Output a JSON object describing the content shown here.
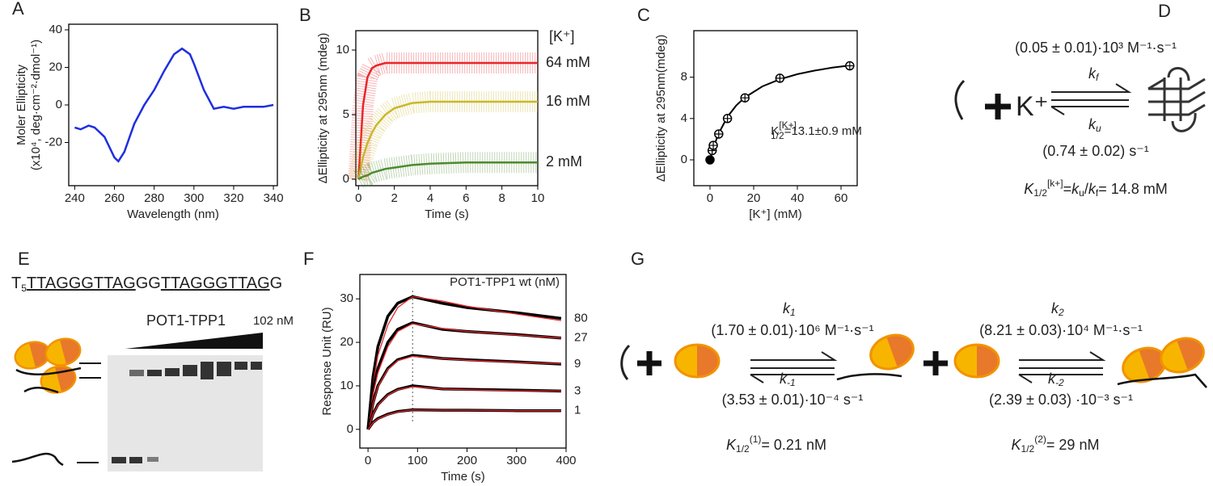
{
  "chart_data": [
    {
      "type": "line",
      "label": "A",
      "xlabel": "Wavelength (nm)",
      "ylabel": [
        "Moler Ellipticity",
        "(x10⁴, deg·cm⁻²·dmol⁻¹)"
      ],
      "x": [
        240,
        243,
        247,
        250,
        255,
        260,
        262,
        265,
        270,
        275,
        280,
        285,
        290,
        294,
        298,
        300,
        305,
        310,
        315,
        320,
        325,
        330,
        335,
        340
      ],
      "values": [
        -12,
        -13,
        -11,
        -12,
        -17,
        -28,
        -30,
        -25,
        -10,
        0,
        8,
        18,
        27,
        30,
        27,
        22,
        8,
        -2,
        -1,
        -2,
        -1,
        -1,
        -1,
        0
      ],
      "color": "#1f2ee0",
      "xlim": [
        237,
        342
      ],
      "ylim": [
        -43,
        43
      ],
      "xticks": [
        240,
        260,
        280,
        300,
        320,
        340
      ],
      "yticks": [
        -20,
        0,
        20,
        40
      ]
    },
    {
      "type": "line",
      "label": "B",
      "xlabel": "Time (s)",
      "ylabel": [
        "ΔEllipticity at 295nm (mdeg)"
      ],
      "legend_title": "[K⁺]",
      "noise": true,
      "x": [
        0,
        0.25,
        0.5,
        0.75,
        1,
        1.5,
        2,
        3,
        4,
        6,
        8,
        10
      ],
      "series": [
        {
          "name": "64 mM",
          "color": "#e8262b",
          "values": [
            0,
            5.7,
            7.9,
            8.6,
            8.8,
            9,
            9,
            9,
            9,
            9,
            9,
            9
          ]
        },
        {
          "name": "16 mM",
          "color": "#c9b829",
          "values": [
            0,
            1.7,
            2.8,
            3.6,
            4.2,
            5.0,
            5.5,
            5.9,
            6,
            6,
            6,
            6
          ]
        },
        {
          "name": "2 mM",
          "color": "#4c8a2f",
          "values": [
            0,
            0.2,
            0.3,
            0.5,
            0.6,
            0.8,
            0.9,
            1.1,
            1.2,
            1.3,
            1.3,
            1.3
          ]
        }
      ],
      "xlim": [
        -0.15,
        10
      ],
      "ylim": [
        -0.5,
        11.5
      ],
      "xticks": [
        0,
        2,
        4,
        6,
        8,
        10
      ],
      "yticks": [
        0,
        5,
        10
      ]
    },
    {
      "type": "scatter",
      "label": "C",
      "xlabel": "[K⁺] (mM)",
      "ylabel": [
        "ΔEllipticity at 295nm(mdeg)"
      ],
      "color": "#000000",
      "x": [
        0,
        1,
        1.5,
        4,
        8,
        16,
        32,
        64
      ],
      "values": [
        0,
        0.9,
        1.4,
        2.5,
        4,
        6,
        7.9,
        9.1
      ],
      "fit_x": [
        0,
        1,
        2,
        4,
        8,
        12,
        16,
        24,
        32,
        40,
        48,
        56,
        64
      ],
      "fit_values": [
        0,
        0.78,
        1.46,
        2.57,
        4.17,
        5.26,
        6.05,
        7.11,
        7.8,
        8.29,
        8.64,
        8.92,
        9.13
      ],
      "annotation": {
        "symbol": "K",
        "sup": "[K+]",
        "sub": "1/2",
        "text": "=13.1±0.9 mM"
      },
      "xlim": [
        -7.4,
        67.4
      ],
      "ylim": [
        -2.5,
        12.5
      ],
      "xticks": [
        0,
        20,
        40,
        60
      ],
      "yticks": [
        0,
        4,
        8
      ]
    },
    {
      "type": "line",
      "label": "F",
      "xlabel": "Time (s)",
      "ylabel": [
        "Response Unit (RU)"
      ],
      "title": "POT1-TPP1 wt (nM)",
      "color": "#000000",
      "fit_color": "#e8262b",
      "vline": 90,
      "x": [
        0,
        10,
        20,
        40,
        60,
        90,
        150,
        200,
        300,
        390
      ],
      "series": [
        {
          "name": "80",
          "values": [
            0,
            12,
            19,
            26,
            29,
            30.5,
            29,
            28,
            26.8,
            25.5
          ],
          "fit": [
            0,
            10,
            17,
            24,
            28,
            30.5,
            29.5,
            28.3,
            26.5,
            25
          ]
        },
        {
          "name": "27",
          "values": [
            0,
            9,
            14,
            20,
            23,
            24.5,
            23,
            22.5,
            21.8,
            21
          ],
          "fit": [
            0,
            8,
            13,
            19,
            22.5,
            24.3,
            23.2,
            22.5,
            21.7,
            21
          ]
        },
        {
          "name": "9",
          "values": [
            0,
            6,
            10,
            14,
            16,
            17,
            16.3,
            16,
            15.5,
            15
          ],
          "fit": [
            0,
            5.8,
            9.8,
            13.8,
            15.8,
            16.8,
            16.3,
            15.9,
            15.4,
            15.1
          ]
        },
        {
          "name": "3",
          "values": [
            0,
            3.5,
            5.7,
            8,
            9.2,
            10,
            9.3,
            9.2,
            9,
            8.8
          ],
          "fit": [
            0,
            3.4,
            5.6,
            7.9,
            9.1,
            9.8,
            9.3,
            9.1,
            8.9,
            8.8
          ]
        },
        {
          "name": "1",
          "values": [
            0,
            1.6,
            2.5,
            3.5,
            4.1,
            4.5,
            4.4,
            4.4,
            4.3,
            4.3
          ],
          "fit": [
            0,
            1.5,
            2.4,
            3.4,
            4.0,
            4.5,
            4.4,
            4.4,
            4.3,
            4.3
          ]
        }
      ],
      "xlim": [
        -16.5,
        400
      ],
      "ylim": [
        -4.3,
        35.6
      ],
      "xticks": [
        0,
        100,
        200,
        300,
        400
      ],
      "yticks": [
        0,
        10,
        20,
        30
      ]
    }
  ],
  "diagrams": {
    "D": {
      "label": "D",
      "kf_rate": "(0.05 ± 0.01)·10³ M⁻¹·s⁻¹",
      "ion": "K⁺",
      "kf": [
        "k",
        "f"
      ],
      "ku": [
        "k",
        "u"
      ],
      "ku_rate": "(0.74 ± 0.02) s⁻¹",
      "eq": [
        "K",
        "1/2",
        "[k+]",
        "=",
        "k",
        "u",
        "/",
        "k",
        "f",
        "= 14.8 mM"
      ]
    },
    "E": {
      "label": "E",
      "sequence": [
        "T",
        "5",
        "TTAGGGTTAG",
        "GG",
        "TTAGGGTTAG",
        "G"
      ],
      "protein": "POT1-TPP1",
      "max_conc": "102 nM"
    },
    "G": {
      "label": "G",
      "k1": [
        "k",
        "1"
      ],
      "k1_rate": "(1.70 ± 0.01)·10⁶ M⁻¹·s⁻¹",
      "km1": [
        "k",
        "-1"
      ],
      "km1_rate": "(3.53 ± 0.01)·10⁻⁴ s⁻¹",
      "k2": [
        "k",
        "2"
      ],
      "k2_rate": "(8.21 ± 0.03)·10⁴ M⁻¹·s⁻¹",
      "km2": [
        "k",
        "-2"
      ],
      "km2_rate": "(2.39 ± 0.03) ·10⁻³ s⁻¹",
      "K1": [
        "K",
        "1/2",
        "(1)",
        "= 0.21 nM"
      ],
      "K2": [
        "K",
        "1/2",
        "(2)",
        "= 29 nM"
      ]
    }
  }
}
